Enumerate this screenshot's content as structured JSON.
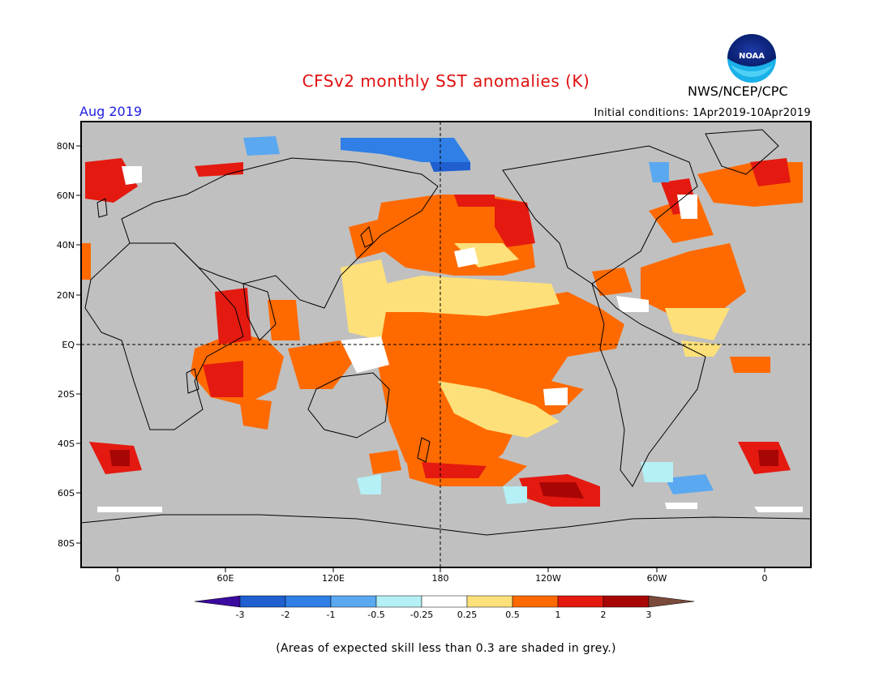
{
  "title": "CFSv2 monthly SST anomalies (K)",
  "agency": "NWS/NCEP/CPC",
  "logo_text": "NOAA",
  "valid_month": "Aug 2019",
  "initial_conditions": "Initial conditions: 1Apr2019-10Apr2019",
  "note": "(Areas of expected skill less than 0.3 are shaded in grey.)",
  "axes": {
    "lat_labels": [
      "80N",
      "60N",
      "40N",
      "20N",
      "EQ",
      "20S",
      "40S",
      "60S",
      "80S"
    ],
    "lon_labels": [
      "0",
      "60E",
      "120E",
      "180",
      "120W",
      "60W",
      "0"
    ]
  },
  "colorbar": {
    "labels": [
      "-3",
      "-2",
      "-1",
      "-0.5",
      "-0.25",
      "0.25",
      "0.5",
      "1",
      "2",
      "3"
    ],
    "colors": [
      "#3b0a9e",
      "#1f5fd0",
      "#2f7fe6",
      "#5aa8f0",
      "#b4f0f6",
      "#ffffff",
      "#fde07a",
      "#ff6a00",
      "#e41a10",
      "#a80505",
      "#7a4a3a"
    ]
  },
  "colors": {
    "land_grey": "#c0c0c0",
    "title_red": "#e01010",
    "month_blue": "#2020e0"
  }
}
